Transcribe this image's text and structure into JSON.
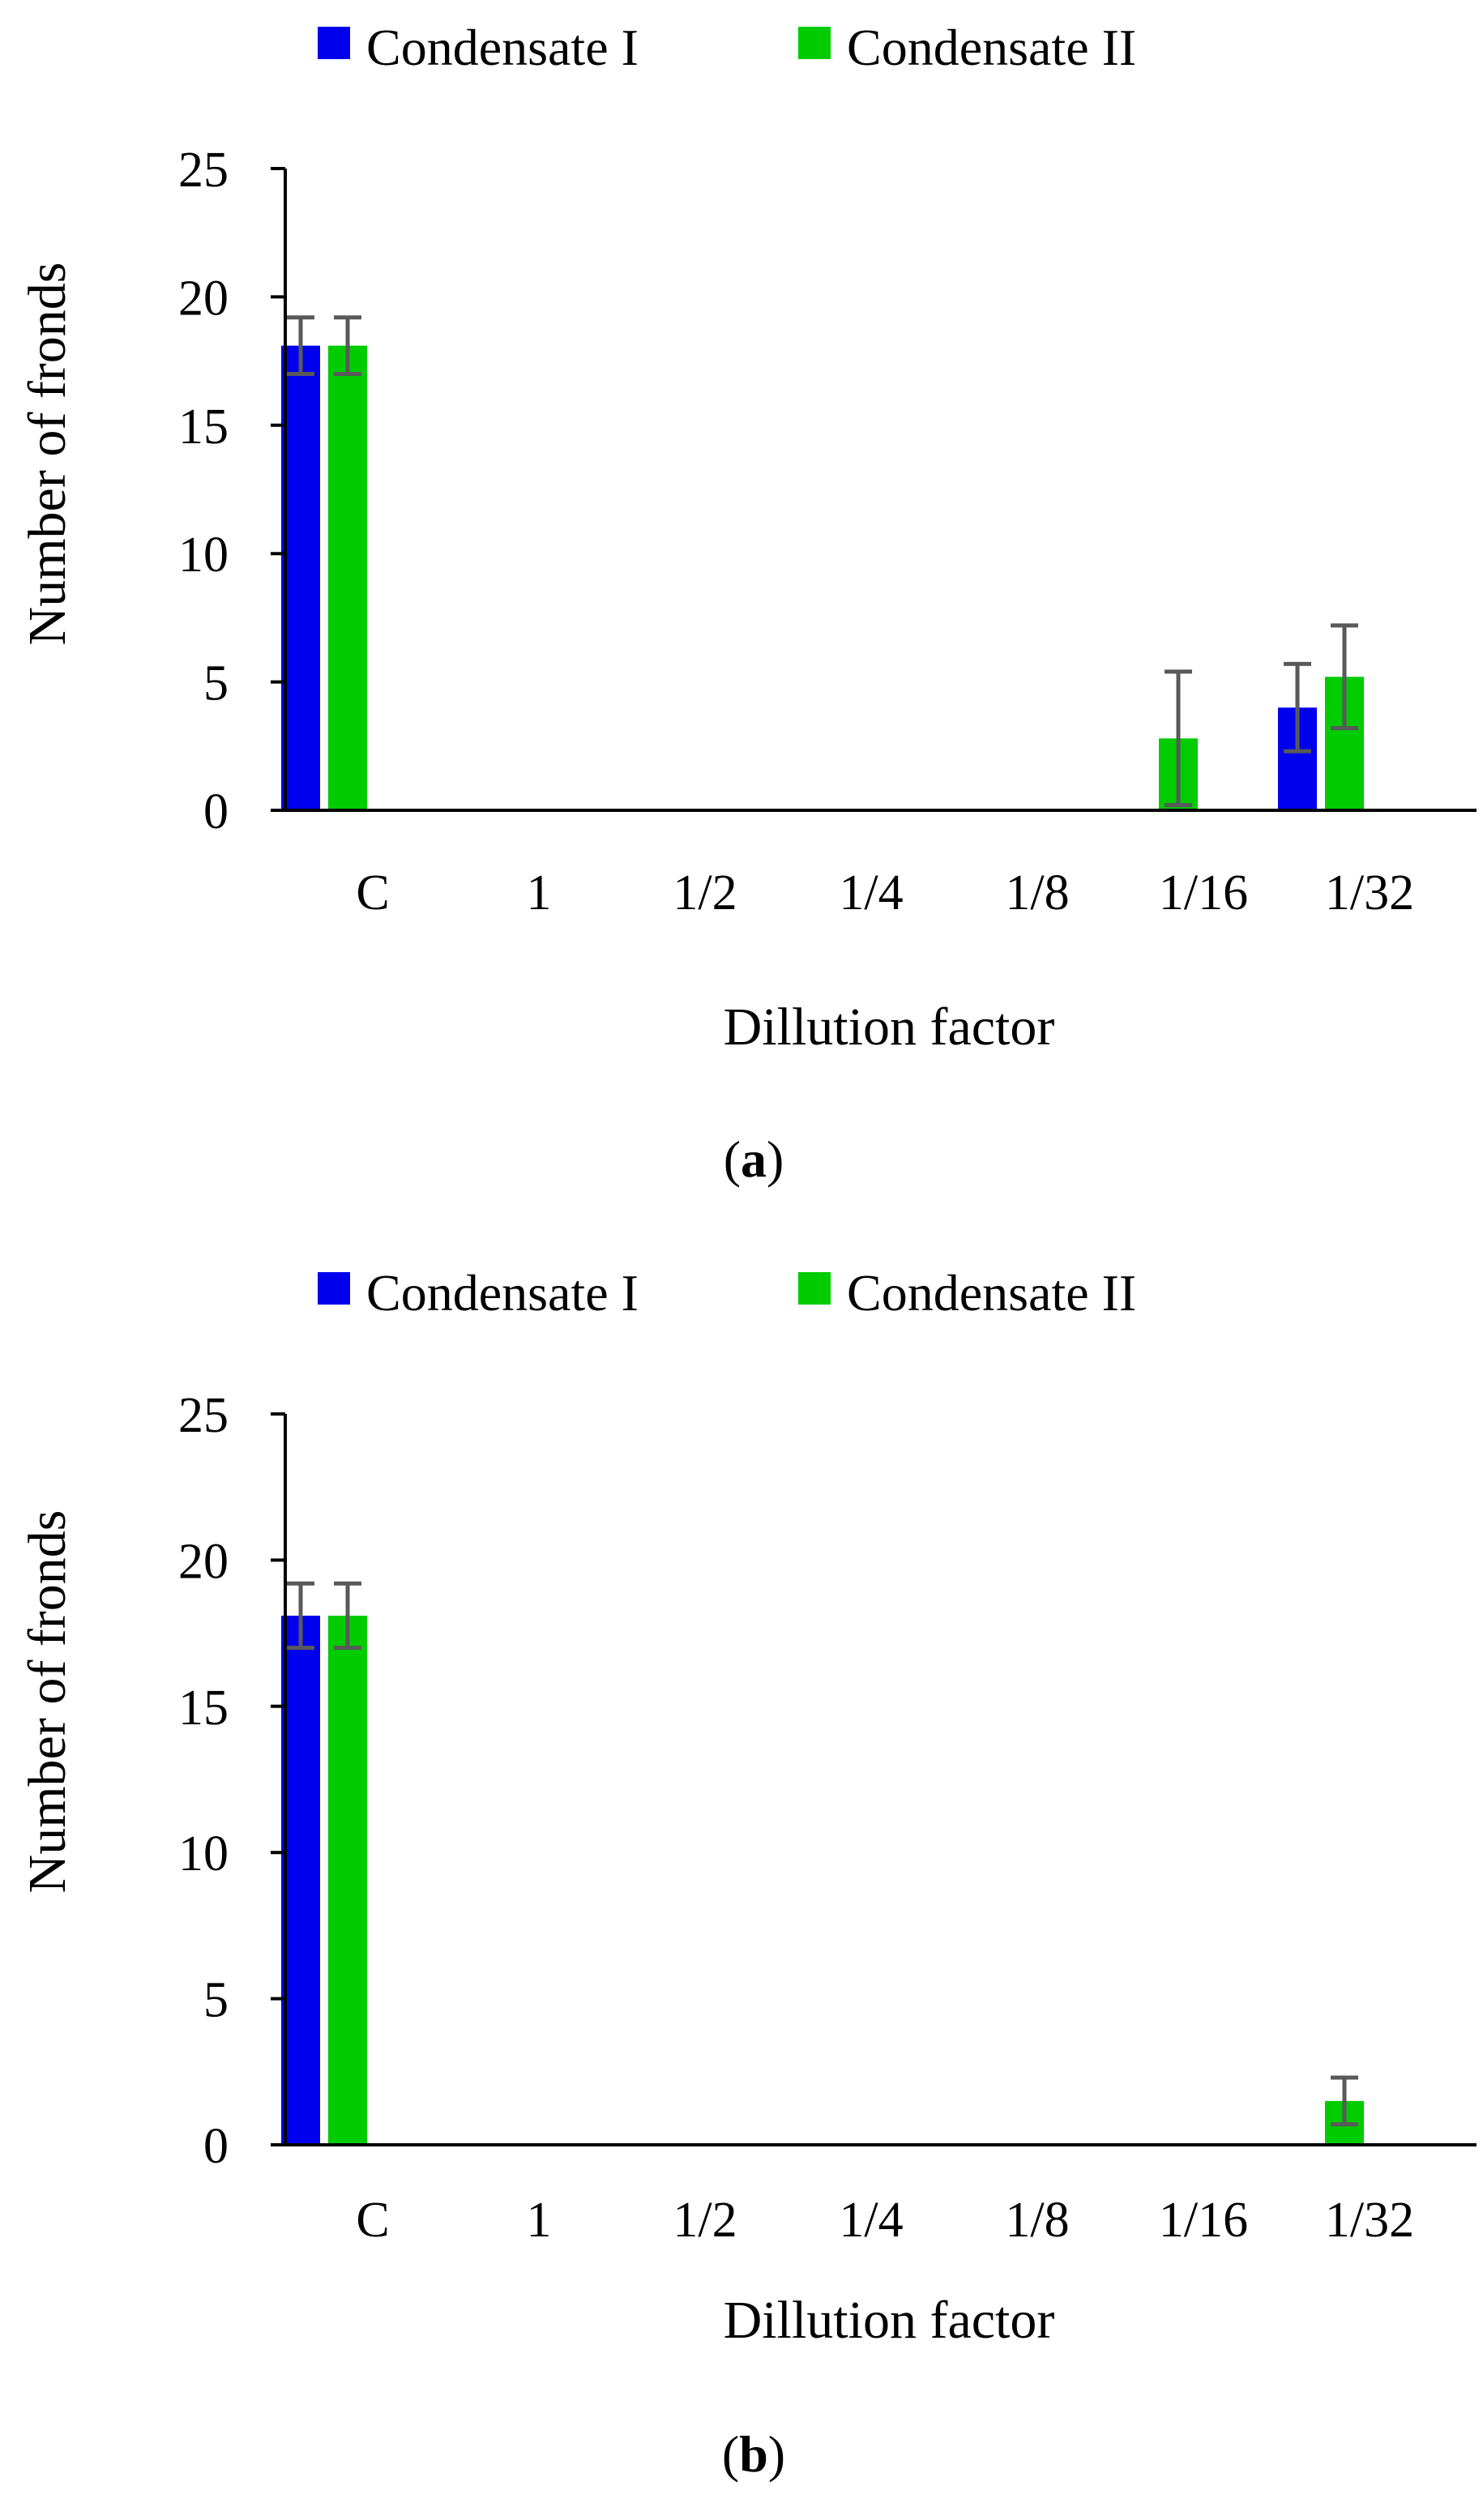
{
  "colors": {
    "condensate_i": "#0000ee",
    "condensate_ii": "#00cc00",
    "error_bar": "#595959",
    "axis": "#000000"
  },
  "chart_data": [
    {
      "type": "bar",
      "panel": "a",
      "caption": {
        "open": "(",
        "letter": "a",
        "close": ")"
      },
      "categories": [
        "C",
        "1",
        "1/2",
        "1/4",
        "1/8",
        "1/16",
        "1/32"
      ],
      "series": [
        {
          "name": "Condensate I",
          "values": [
            18.1,
            0,
            0,
            0,
            0,
            0,
            4.0
          ],
          "errors": [
            1.1,
            0,
            0,
            0,
            0,
            0,
            1.7
          ]
        },
        {
          "name": "Condensate II",
          "values": [
            18.1,
            0,
            0,
            0,
            0,
            2.8,
            5.2
          ],
          "errors": [
            1.1,
            0,
            0,
            0,
            0,
            2.6,
            2.0
          ]
        }
      ],
      "xlabel": "Dillution factor",
      "ylabel": "Number of fronds",
      "ylim": [
        0,
        25
      ],
      "yticks": [
        0,
        5,
        10,
        15,
        20,
        25
      ],
      "legend_position": "top"
    },
    {
      "type": "bar",
      "panel": "b",
      "caption": {
        "open": "(",
        "letter": "b",
        "close": ")"
      },
      "categories": [
        "C",
        "1",
        "1/2",
        "1/4",
        "1/8",
        "1/16",
        "1/32"
      ],
      "series": [
        {
          "name": "Condensate I",
          "values": [
            18.1,
            0,
            0,
            0,
            0,
            0,
            0
          ],
          "errors": [
            1.1,
            0,
            0,
            0,
            0,
            0,
            0
          ]
        },
        {
          "name": "Condensate II",
          "values": [
            18.1,
            0,
            0,
            0,
            0,
            0,
            1.5
          ],
          "errors": [
            1.1,
            0,
            0,
            0,
            0,
            0,
            0.8
          ]
        }
      ],
      "xlabel": "Dillution factor",
      "ylabel": "Number of fronds",
      "ylim": [
        0,
        25
      ],
      "yticks": [
        0,
        5,
        10,
        15,
        20,
        25
      ],
      "legend_position": "top"
    }
  ]
}
